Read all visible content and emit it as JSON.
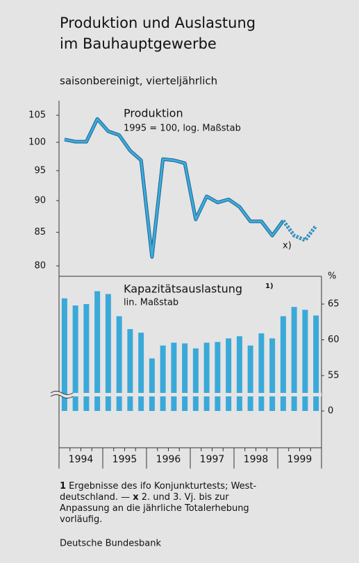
{
  "title": [
    "Produktion und Auslastung",
    "im Bauhauptgewerbe"
  ],
  "subtitle": "saisonbereinigt, vierteljährlich",
  "chart_data": [
    {
      "type": "line",
      "log_scale": true,
      "annotations": [
        "Produktion",
        "1995 = 100, log. Maßstab"
      ],
      "note": "x)",
      "ylim": [
        80,
        105
      ],
      "yticks": [
        80,
        85,
        90,
        95,
        100,
        105
      ],
      "series": [
        {
          "name": null,
          "color": "#3aaedc",
          "style": "solid",
          "values": [
            100.5,
            100.1,
            100.1,
            104.3,
            102,
            101.3,
            98.5,
            96.8,
            81.3,
            97,
            96.8,
            96.3,
            87,
            90.7,
            89.7,
            90.2,
            89,
            86.7,
            86.7,
            84.5,
            86.8,
            null,
            null,
            null
          ]
        },
        {
          "name": null,
          "color": "#3aaedc",
          "style": "dotted",
          "values": [
            null,
            null,
            null,
            null,
            null,
            null,
            null,
            null,
            null,
            null,
            null,
            null,
            null,
            null,
            null,
            null,
            null,
            null,
            null,
            null,
            86.8,
            84.5,
            83.8,
            86
          ]
        }
      ]
    },
    {
      "type": "bar",
      "axis_break": true,
      "annotations": [
        "Kapazitätsauslastung",
        "lin. Maßstab"
      ],
      "annotation_sup": "1)",
      "unit": "%",
      "color": "#3aa9d9",
      "ylim": [
        0,
        67
      ],
      "yticks": [
        0,
        55,
        60,
        65
      ],
      "values": [
        65.8,
        64.8,
        65.0,
        66.8,
        66.4,
        63.3,
        61.5,
        61.0,
        57.4,
        59.2,
        59.6,
        59.5,
        58.8,
        59.6,
        59.7,
        60.2,
        60.5,
        59.2,
        60.9,
        60.2,
        63.3,
        64.6,
        64.2,
        63.4
      ],
      "years": [
        "1994",
        "1995",
        "1996",
        "1997",
        "1998",
        "1999"
      ]
    }
  ],
  "footnote": [
    [
      {
        "t": "1",
        "b": true
      },
      {
        "t": " Ergebnisse des ifo Konjunkturtests; West-"
      }
    ],
    [
      {
        "t": "deutschland. — "
      },
      {
        "t": "x",
        "b": true
      },
      {
        "t": " 2. und 3. Vj. bis zur"
      }
    ],
    [
      {
        "t": "Anpassung an die jährliche Totalerhebung"
      }
    ],
    [
      {
        "t": "vorläufig."
      }
    ]
  ],
  "source": "Deutsche Bundesbank"
}
